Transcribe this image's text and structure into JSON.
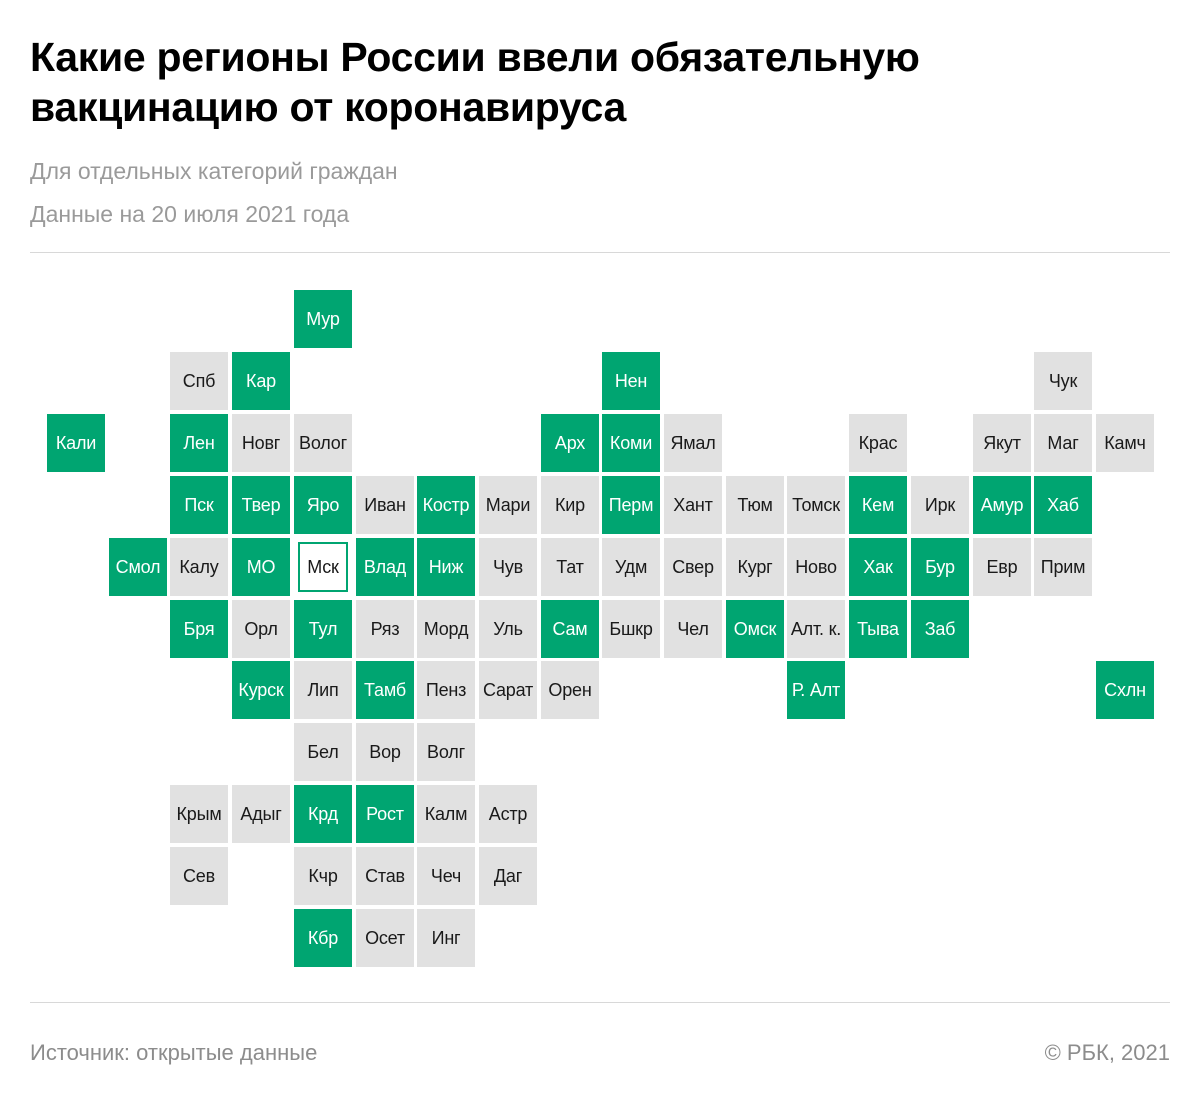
{
  "header": {
    "title_line1": "Какие регионы России ввели обязательную",
    "title_line2": "вакцинацию от коронавируса",
    "subtitle": "Для отдельных категорий граждан",
    "date_note": "Данные на 20 июля 2021 года"
  },
  "colors": {
    "mandatory": "#00a571",
    "not_mandatory": "#e1e1e1",
    "text_on_green": "#ffffff",
    "muted_text": "#9a9a9a"
  },
  "regions": [
    {
      "label": "Мур",
      "status": "mandatory",
      "col": 4,
      "row": 0
    },
    {
      "label": "Спб",
      "status": "none",
      "col": 2,
      "row": 1
    },
    {
      "label": "Кар",
      "status": "mandatory",
      "col": 3,
      "row": 1
    },
    {
      "label": "Нен",
      "status": "mandatory",
      "col": 9,
      "row": 1
    },
    {
      "label": "Чук",
      "status": "none",
      "col": 16,
      "row": 1
    },
    {
      "label": "Кали",
      "status": "mandatory",
      "col": 0,
      "row": 2
    },
    {
      "label": "Лен",
      "status": "mandatory",
      "col": 2,
      "row": 2
    },
    {
      "label": "Новг",
      "status": "none",
      "col": 3,
      "row": 2
    },
    {
      "label": "Волог",
      "status": "none",
      "col": 4,
      "row": 2
    },
    {
      "label": "Арх",
      "status": "mandatory",
      "col": 8,
      "row": 2
    },
    {
      "label": "Коми",
      "status": "mandatory",
      "col": 9,
      "row": 2
    },
    {
      "label": "Ямал",
      "status": "none",
      "col": 10,
      "row": 2
    },
    {
      "label": "Крас",
      "status": "none",
      "col": 13,
      "row": 2
    },
    {
      "label": "Якут",
      "status": "none",
      "col": 15,
      "row": 2
    },
    {
      "label": "Маг",
      "status": "none",
      "col": 16,
      "row": 2
    },
    {
      "label": "Камч",
      "status": "none",
      "col": 17,
      "row": 2
    },
    {
      "label": "Пск",
      "status": "mandatory",
      "col": 2,
      "row": 3
    },
    {
      "label": "Твер",
      "status": "mandatory",
      "col": 3,
      "row": 3
    },
    {
      "label": "Яро",
      "status": "mandatory",
      "col": 4,
      "row": 3
    },
    {
      "label": "Иван",
      "status": "none",
      "col": 5,
      "row": 3
    },
    {
      "label": "Костр",
      "status": "mandatory",
      "col": 6,
      "row": 3
    },
    {
      "label": "Мари",
      "status": "none",
      "col": 7,
      "row": 3
    },
    {
      "label": "Кир",
      "status": "none",
      "col": 8,
      "row": 3
    },
    {
      "label": "Перм",
      "status": "mandatory",
      "col": 9,
      "row": 3
    },
    {
      "label": "Хант",
      "status": "none",
      "col": 10,
      "row": 3
    },
    {
      "label": "Тюм",
      "status": "none",
      "col": 11,
      "row": 3
    },
    {
      "label": "Томск",
      "status": "none",
      "col": 12,
      "row": 3
    },
    {
      "label": "Кем",
      "status": "mandatory",
      "col": 13,
      "row": 3
    },
    {
      "label": "Ирк",
      "status": "none",
      "col": 14,
      "row": 3
    },
    {
      "label": "Амур",
      "status": "mandatory",
      "col": 15,
      "row": 3
    },
    {
      "label": "Хаб",
      "status": "mandatory",
      "col": 16,
      "row": 3
    },
    {
      "label": "Смол",
      "status": "mandatory",
      "col": 1,
      "row": 4
    },
    {
      "label": "Калу",
      "status": "none",
      "col": 2,
      "row": 4
    },
    {
      "label": "МО",
      "status": "mandatory",
      "col": 3,
      "row": 4
    },
    {
      "label": "Мск",
      "status": "capital",
      "col": 4,
      "row": 4
    },
    {
      "label": "Влад",
      "status": "mandatory",
      "col": 5,
      "row": 4
    },
    {
      "label": "Ниж",
      "status": "mandatory",
      "col": 6,
      "row": 4
    },
    {
      "label": "Чув",
      "status": "none",
      "col": 7,
      "row": 4
    },
    {
      "label": "Тат",
      "status": "none",
      "col": 8,
      "row": 4
    },
    {
      "label": "Удм",
      "status": "none",
      "col": 9,
      "row": 4
    },
    {
      "label": "Свер",
      "status": "none",
      "col": 10,
      "row": 4
    },
    {
      "label": "Кург",
      "status": "none",
      "col": 11,
      "row": 4
    },
    {
      "label": "Ново",
      "status": "none",
      "col": 12,
      "row": 4
    },
    {
      "label": "Хак",
      "status": "mandatory",
      "col": 13,
      "row": 4
    },
    {
      "label": "Бур",
      "status": "mandatory",
      "col": 14,
      "row": 4
    },
    {
      "label": "Евр",
      "status": "none",
      "col": 15,
      "row": 4
    },
    {
      "label": "Прим",
      "status": "none",
      "col": 16,
      "row": 4
    },
    {
      "label": "Бря",
      "status": "mandatory",
      "col": 2,
      "row": 5
    },
    {
      "label": "Орл",
      "status": "none",
      "col": 3,
      "row": 5
    },
    {
      "label": "Тул",
      "status": "mandatory",
      "col": 4,
      "row": 5
    },
    {
      "label": "Ряз",
      "status": "none",
      "col": 5,
      "row": 5
    },
    {
      "label": "Морд",
      "status": "none",
      "col": 6,
      "row": 5
    },
    {
      "label": "Уль",
      "status": "none",
      "col": 7,
      "row": 5
    },
    {
      "label": "Сам",
      "status": "mandatory",
      "col": 8,
      "row": 5
    },
    {
      "label": "Бшкр",
      "status": "none",
      "col": 9,
      "row": 5
    },
    {
      "label": "Чел",
      "status": "none",
      "col": 10,
      "row": 5
    },
    {
      "label": "Омск",
      "status": "mandatory",
      "col": 11,
      "row": 5
    },
    {
      "label": "Алт. к.",
      "status": "none",
      "col": 12,
      "row": 5
    },
    {
      "label": "Тыва",
      "status": "mandatory",
      "col": 13,
      "row": 5
    },
    {
      "label": "Заб",
      "status": "mandatory",
      "col": 14,
      "row": 5
    },
    {
      "label": "Курск",
      "status": "mandatory",
      "col": 3,
      "row": 6
    },
    {
      "label": "Лип",
      "status": "none",
      "col": 4,
      "row": 6
    },
    {
      "label": "Тамб",
      "status": "mandatory",
      "col": 5,
      "row": 6
    },
    {
      "label": "Пенз",
      "status": "none",
      "col": 6,
      "row": 6
    },
    {
      "label": "Сарат",
      "status": "none",
      "col": 7,
      "row": 6
    },
    {
      "label": "Орен",
      "status": "none",
      "col": 8,
      "row": 6
    },
    {
      "label": "Р. Алт",
      "status": "mandatory",
      "col": 12,
      "row": 6
    },
    {
      "label": "Схлн",
      "status": "mandatory",
      "col": 17,
      "row": 6
    },
    {
      "label": "Бел",
      "status": "none",
      "col": 4,
      "row": 7
    },
    {
      "label": "Вор",
      "status": "none",
      "col": 5,
      "row": 7
    },
    {
      "label": "Волг",
      "status": "none",
      "col": 6,
      "row": 7
    },
    {
      "label": "Крым",
      "status": "none",
      "col": 2,
      "row": 8
    },
    {
      "label": "Адыг",
      "status": "none",
      "col": 3,
      "row": 8
    },
    {
      "label": "Крд",
      "status": "mandatory",
      "col": 4,
      "row": 8
    },
    {
      "label": "Рост",
      "status": "mandatory",
      "col": 5,
      "row": 8
    },
    {
      "label": "Калм",
      "status": "none",
      "col": 6,
      "row": 8
    },
    {
      "label": "Астр",
      "status": "none",
      "col": 7,
      "row": 8
    },
    {
      "label": "Сев",
      "status": "none",
      "col": 2,
      "row": 9
    },
    {
      "label": "Кчр",
      "status": "none",
      "col": 4,
      "row": 9
    },
    {
      "label": "Став",
      "status": "none",
      "col": 5,
      "row": 9
    },
    {
      "label": "Чеч",
      "status": "none",
      "col": 6,
      "row": 9
    },
    {
      "label": "Даг",
      "status": "none",
      "col": 7,
      "row": 9
    },
    {
      "label": "Кбр",
      "status": "mandatory",
      "col": 4,
      "row": 10
    },
    {
      "label": "Осет",
      "status": "none",
      "col": 5,
      "row": 10
    },
    {
      "label": "Инг",
      "status": "none",
      "col": 6,
      "row": 10
    }
  ],
  "footer": {
    "source": "Источник:  открытые данные",
    "copyright": "©  РБК, 2021"
  }
}
